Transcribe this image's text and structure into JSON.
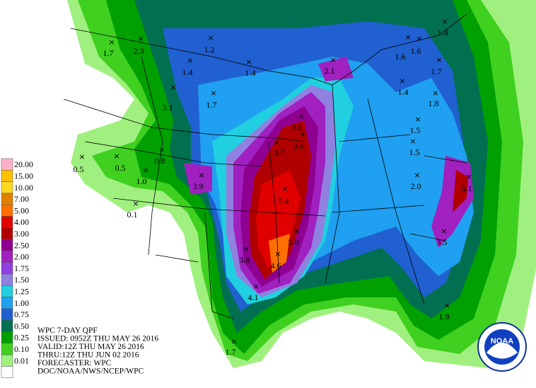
{
  "map": {
    "header": [
      "WPC 7-DAY QPF",
      "ISSUED: 0952Z THU MAY 26 2016",
      "VALID:12Z THU MAY 26 2016",
      "THRU:12Z THU JUN 02 2016",
      "FORECASTER: WPC",
      "DOC/NOAA/NWS/NCEP/WPC"
    ],
    "logo": "NOAA",
    "legend": [
      {
        "label": "20.00",
        "color": "#ffb0c8"
      },
      {
        "label": "15.00",
        "color": "#ffc000"
      },
      {
        "label": "10.00",
        "color": "#ffd820"
      },
      {
        "label": "7.00",
        "color": "#e08000"
      },
      {
        "label": "5.00",
        "color": "#ff7000"
      },
      {
        "label": "4.00",
        "color": "#e00000"
      },
      {
        "label": "3.00",
        "color": "#b00000"
      },
      {
        "label": "2.50",
        "color": "#900090"
      },
      {
        "label": "2.00",
        "color": "#a020c0"
      },
      {
        "label": "1.75",
        "color": "#9040e0"
      },
      {
        "label": "1.50",
        "color": "#9080e0"
      },
      {
        "label": "1.25",
        "color": "#20d0e0"
      },
      {
        "label": "1.00",
        "color": "#20a0f0"
      },
      {
        "label": "0.75",
        "color": "#2060d0"
      },
      {
        "label": "0.50",
        "color": "#007050"
      },
      {
        "label": "0.25",
        "color": "#00a000"
      },
      {
        "label": "0.10",
        "color": "#40d020"
      },
      {
        "label": "0.01",
        "color": "#a0f080"
      },
      {
        "label": "",
        "color": "#ffffff"
      }
    ],
    "points": [
      "2.3",
      "1.7",
      "1.2",
      "1.4",
      "1.4",
      "2.1",
      "1.6",
      "1.6",
      "1.4",
      "1.7",
      "1.4",
      "3.1",
      "1.7",
      "1.8",
      "3.6",
      "3.7",
      "3.6",
      "1.5",
      "1.5",
      "0.5",
      "0.5",
      "0.8",
      "1.0",
      "3.9",
      "2.0",
      "5.1",
      "5.4",
      "0.1",
      "5.0",
      "3.5",
      "3.8",
      "4.6",
      "4.1",
      "1.9",
      "1.7"
    ]
  }
}
